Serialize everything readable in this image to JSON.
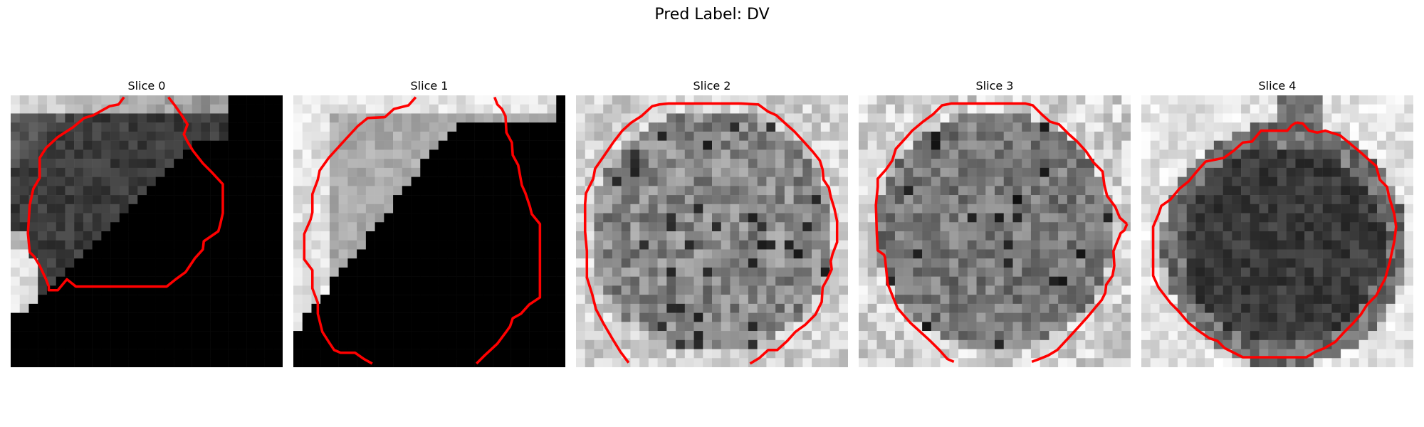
{
  "figure": {
    "title": "Pred Label: DV",
    "contour_color": "#ff0000",
    "colormap": "gray"
  },
  "panels": [
    {
      "title": "Slice 0"
    },
    {
      "title": "Slice 1"
    },
    {
      "title": "Slice 2"
    },
    {
      "title": "Slice 3"
    },
    {
      "title": "Slice 4"
    }
  ]
}
